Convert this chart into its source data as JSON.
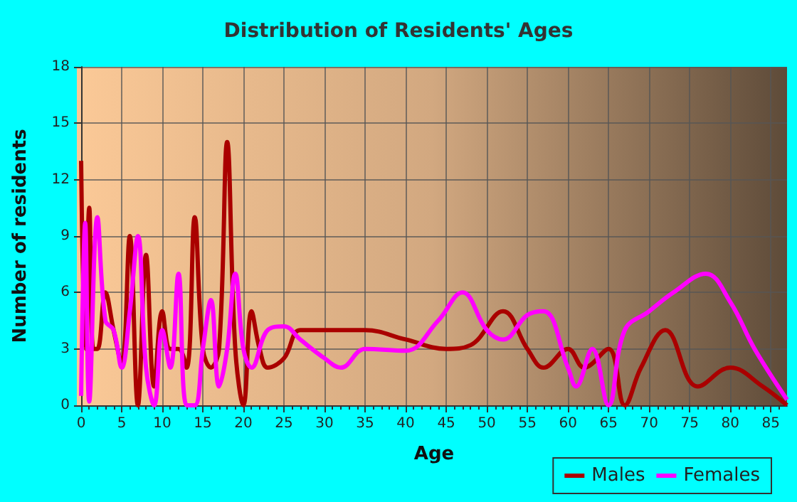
{
  "chart_data": {
    "type": "line",
    "title": "Distribution of Residents' Ages",
    "xlabel": "Age",
    "ylabel": "Number of residents",
    "xlim": [
      0,
      87
    ],
    "xticks": [
      0,
      5,
      10,
      15,
      20,
      25,
      30,
      35,
      40,
      45,
      50,
      55,
      60,
      65,
      70,
      75,
      80,
      85
    ],
    "ylim": [
      0,
      18
    ],
    "yticks": [
      0,
      3,
      6,
      9,
      12,
      15,
      18
    ],
    "grid": true,
    "legend": "bottom right",
    "marker": "none",
    "line_style": "solid",
    "series": [
      {
        "name": "Males",
        "color": "#aa0000",
        "x": [
          0,
          0.5,
          1,
          1.5,
          2,
          3,
          4,
          5,
          6,
          7,
          8,
          9,
          10,
          11,
          12,
          13,
          14,
          15,
          16,
          17,
          18,
          19,
          20,
          21,
          22,
          23,
          25,
          27,
          30,
          35,
          40,
          45,
          48,
          52,
          55,
          57,
          60,
          62,
          65,
          67,
          69,
          72,
          76,
          80,
          84,
          87
        ],
        "values": [
          13,
          3,
          10.5,
          3,
          3,
          6,
          4,
          2.2,
          9,
          0,
          8,
          1,
          5,
          3,
          3,
          2,
          10,
          3,
          2,
          3,
          14,
          3,
          0,
          5,
          3,
          2,
          2.5,
          4,
          4,
          4,
          3.5,
          3,
          3.2,
          5,
          3,
          2,
          3,
          2,
          3,
          0,
          2,
          4,
          1,
          2,
          1,
          0
        ]
      },
      {
        "name": "Females",
        "color": "#ff00ff",
        "x": [
          0,
          0.5,
          1,
          2,
          3,
          4,
          5,
          6,
          7,
          8,
          9,
          10,
          11,
          12,
          13,
          14,
          15,
          16,
          17,
          18,
          19,
          20,
          21,
          23,
          25,
          27,
          30,
          32,
          35,
          40,
          44,
          47,
          50,
          52,
          55,
          57,
          60,
          61,
          63,
          65,
          67,
          70,
          73,
          77,
          80,
          83,
          87
        ],
        "values": [
          0.5,
          9.7,
          0.2,
          10,
          4.5,
          4,
          2,
          5,
          9,
          2,
          0,
          4,
          2,
          7,
          0,
          0,
          3,
          5.6,
          1,
          3,
          7,
          3,
          2,
          4,
          4.2,
          3.5,
          2.5,
          2,
          3,
          2.9,
          4.5,
          6,
          4,
          3.5,
          4.8,
          5,
          2,
          1,
          3,
          0,
          4,
          5,
          6,
          7,
          5.5,
          3,
          0.3
        ]
      }
    ]
  }
}
